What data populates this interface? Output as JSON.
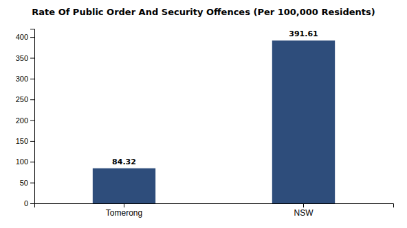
{
  "chart_data": {
    "type": "bar",
    "title": "Rate Of Public Order And Security Offences (Per 100,000 Residents)",
    "categories": [
      "Tomerong",
      "NSW"
    ],
    "values": [
      84.32,
      391.61
    ],
    "color": "#2e4d7b",
    "ylim": [
      0,
      420
    ],
    "yticks": [
      0,
      50,
      100,
      150,
      200,
      250,
      300,
      350,
      400
    ],
    "grid": false,
    "data_labels": true
  }
}
